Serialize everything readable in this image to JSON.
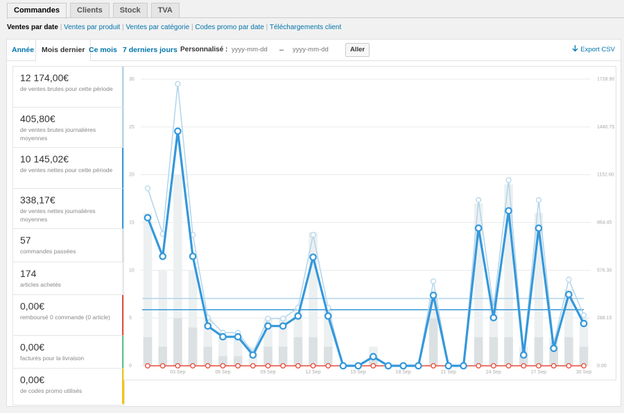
{
  "nav_tabs": [
    {
      "label": "Commandes",
      "active": true
    },
    {
      "label": "Clients",
      "active": false
    },
    {
      "label": "Stock",
      "active": false
    },
    {
      "label": "TVA",
      "active": false
    }
  ],
  "subnav": {
    "current": "Ventes par date",
    "links": [
      "Ventes par produit",
      "Ventes par catégorie",
      "Codes promo par date",
      "Téléchargements client"
    ]
  },
  "ranges": {
    "year": "Année",
    "last_month": "Mois dernier",
    "this_month": "Ce mois",
    "last_7_days": "7 derniers jours",
    "custom_label": "Personnalisé :",
    "start_placeholder": "yyyy-mm-dd",
    "end_placeholder": "yyyy-mm-dd",
    "dash": "–",
    "go": "Aller",
    "export": "Export CSV",
    "export_icon": "download-arrow-icon"
  },
  "legend": [
    {
      "amount": "12 174,00€",
      "label": "de ventes brutes pour cette période",
      "color": "#b1d4ea"
    },
    {
      "amount": "405,80€",
      "label": "de ventes brutes journalières moyennes",
      "color": "#b1d4ea"
    },
    {
      "amount": "10 145,02€",
      "label": "de ventes nettes pour cette période",
      "color": "#3498db"
    },
    {
      "amount": "338,17€",
      "label": "de ventes nettes journalières moyennes",
      "color": "#3498db"
    },
    {
      "amount": "57",
      "label": "commandes passées",
      "color": "#dbe1e3"
    },
    {
      "amount": "174",
      "label": "articles achetés",
      "color": "#ecf0f1"
    },
    {
      "amount": "0,00€",
      "label": "remboursé 0 commande (0 article)",
      "color": "#e74c3c"
    },
    {
      "amount": "0,00€",
      "label": "facturés pour la livraison",
      "color": "#5cc488"
    },
    {
      "amount": "0,00€",
      "label": "de codes promo utilisés",
      "color": "#f1c40f"
    }
  ],
  "colors": {
    "gross": "#b1d4ea",
    "net": "#3498db",
    "orders_bar": "#dbe1e3",
    "items_bar": "#ecf0f1",
    "refund": "#e74c3c"
  },
  "chart_data": {
    "type": "line",
    "days": 30,
    "x_tick_labels": [
      {
        "day": 3,
        "label": "03 Sep"
      },
      {
        "day": 6,
        "label": "06 Sep"
      },
      {
        "day": 9,
        "label": "09 Sep"
      },
      {
        "day": 12,
        "label": "12 Sep"
      },
      {
        "day": 15,
        "label": "15 Sep"
      },
      {
        "day": 18,
        "label": "18 Sep"
      },
      {
        "day": 21,
        "label": "21 Sep"
      },
      {
        "day": 24,
        "label": "24 Sep"
      },
      {
        "day": 27,
        "label": "27 Sep"
      },
      {
        "day": 30,
        "label": "30 Sep"
      }
    ],
    "y_left": {
      "ticks": [
        "0",
        "5",
        "10",
        "15",
        "20",
        "25",
        "30"
      ],
      "max": 30
    },
    "y_right": {
      "ticks": [
        "0.00",
        "288.15",
        "576.30",
        "864.45",
        "1152.60",
        "1440.75",
        "1728.90"
      ],
      "max": 1728.9
    },
    "series": [
      {
        "name": "de ventes brutes pour cette période",
        "color": "#b1d4ea",
        "values": [
          1070,
          795,
          1700,
          790,
          290,
          200,
          200,
          80,
          285,
          285,
          350,
          790,
          350,
          0,
          0,
          60,
          0,
          0,
          0,
          510,
          0,
          0,
          1000,
          350,
          1120,
          80,
          1000,
          130,
          520,
          305
        ]
      },
      {
        "name": "de ventes nettes pour cette période",
        "color": "#3498db",
        "values": [
          893,
          660,
          1415,
          660,
          240,
          175,
          175,
          65,
          240,
          240,
          300,
          655,
          300,
          0,
          0,
          55,
          0,
          0,
          0,
          425,
          0,
          0,
          830,
          290,
          935,
          65,
          830,
          105,
          430,
          255
        ]
      },
      {
        "name": "commandes passées",
        "color": "#dbe1e3",
        "values": [
          3,
          2,
          5,
          4,
          2,
          1,
          1,
          0,
          2,
          2,
          3,
          3,
          2,
          0,
          0,
          1,
          0,
          0,
          0,
          5,
          0,
          0,
          3,
          3,
          3,
          1,
          3,
          2,
          3,
          2
        ]
      },
      {
        "name": "articles achetés",
        "color": "#ecf0f1",
        "values": [
          16,
          10,
          20,
          10,
          5,
          3,
          3,
          2,
          5,
          5,
          6,
          14,
          6,
          0,
          0,
          2,
          0,
          0,
          0,
          7,
          0,
          0,
          17,
          7,
          19,
          2,
          16,
          3,
          8,
          5
        ]
      },
      {
        "name": "remboursé",
        "color": "#e74c3c",
        "values": [
          0,
          0,
          0,
          0,
          0,
          0,
          0,
          0,
          0,
          0,
          0,
          0,
          0,
          0,
          0,
          0,
          0,
          0,
          0,
          0,
          0,
          0,
          0,
          0,
          0,
          0,
          0,
          0,
          0,
          0
        ]
      }
    ],
    "averages": [
      {
        "name": "de ventes brutes journalières moyennes",
        "value": 405.8,
        "color": "#b1d4ea"
      },
      {
        "name": "de ventes nettes journalières moyennes",
        "value": 338.17,
        "color": "#3498db"
      }
    ]
  }
}
